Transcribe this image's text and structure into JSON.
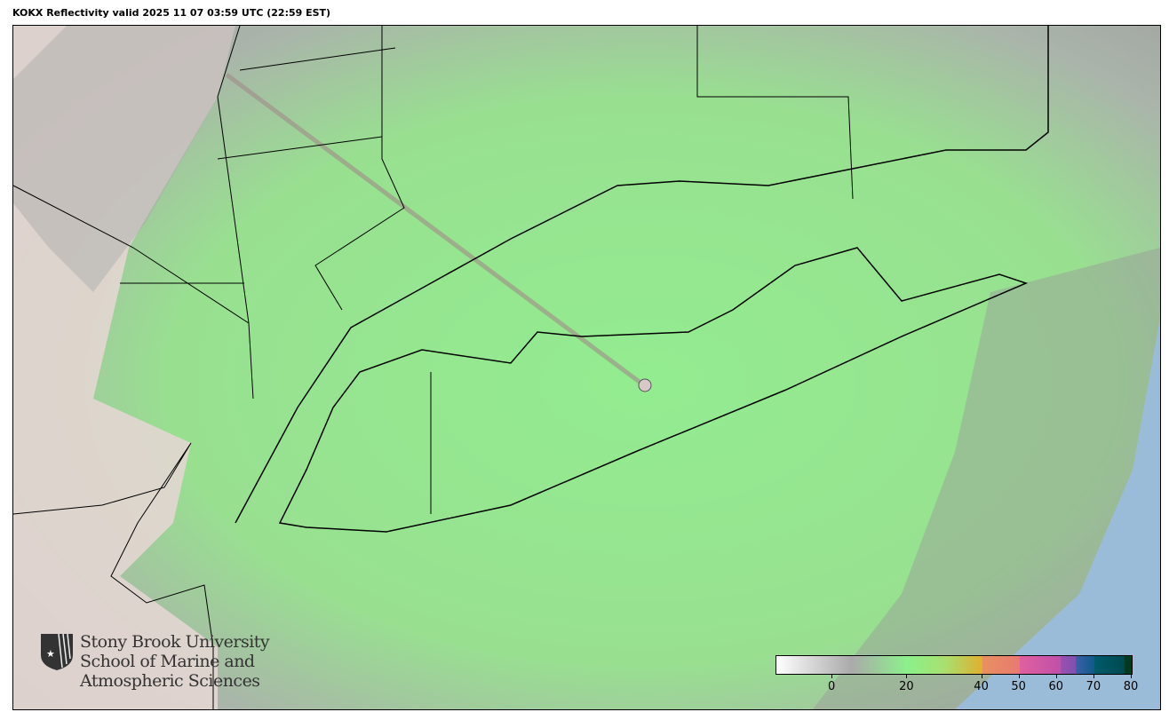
{
  "title": "KOKX Reflectivity valid 2025 11 07 03:59 UTC (22:59 EST)",
  "colorbar": {
    "min": -15,
    "max": 80,
    "ticks": [
      "0",
      "20",
      "40",
      "50",
      "60",
      "70",
      "80"
    ],
    "tick_values": [
      0,
      20,
      40,
      50,
      60,
      70,
      80
    ],
    "stops": [
      {
        "v": -15,
        "c": "#ffffff"
      },
      {
        "v": 5,
        "c": "#aaaaaa"
      },
      {
        "v": 20,
        "c": "#8cf08c"
      },
      {
        "v": 30,
        "c": "#a8e070"
      },
      {
        "v": 40,
        "c": "#e0b030"
      },
      {
        "v": 40.1,
        "c": "#e89060"
      },
      {
        "v": 50,
        "c": "#e87a70"
      },
      {
        "v": 50.1,
        "c": "#e060a0"
      },
      {
        "v": 61,
        "c": "#c050a8"
      },
      {
        "v": 61.1,
        "c": "#9a50b0"
      },
      {
        "v": 65,
        "c": "#8050b0"
      },
      {
        "v": 65.1,
        "c": "#3a60a8"
      },
      {
        "v": 70,
        "c": "#105a8a"
      },
      {
        "v": 70.1,
        "c": "#005a6a"
      },
      {
        "v": 78,
        "c": "#004a50"
      },
      {
        "v": 78.1,
        "c": "#003a20"
      },
      {
        "v": 80,
        "c": "#003a20"
      }
    ]
  },
  "colors": {
    "land": "#e6dcd8",
    "ocean": "#9bbcd8",
    "echo": "#93e88f",
    "clutter": "#a6a6a6"
  },
  "logo": {
    "lines": [
      "Stony Brook University",
      "School of Marine and",
      "Atmospheric Sciences"
    ]
  }
}
